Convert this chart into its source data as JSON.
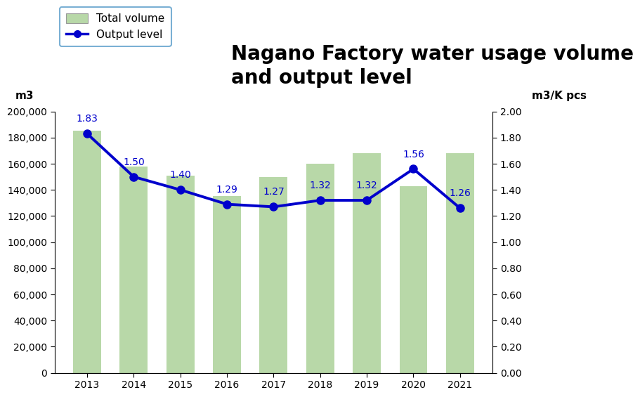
{
  "years": [
    "2013",
    "2014",
    "2015",
    "2016",
    "2017",
    "2018",
    "2019",
    "2020",
    "2021"
  ],
  "bar_values": [
    185000,
    158000,
    151000,
    135000,
    150000,
    160000,
    168000,
    143000,
    168000
  ],
  "line_values": [
    1.83,
    1.5,
    1.4,
    1.29,
    1.27,
    1.32,
    1.32,
    1.56,
    1.26
  ],
  "bar_color": "#b8d8a8",
  "line_color": "#0000cc",
  "marker_color": "#0000cc",
  "title_line1": "Nagano Factory water usage volume",
  "title_line2": "and output level",
  "ylabel_left": "m3",
  "ylabel_right": "m3/K pcs",
  "ylim_left": [
    0,
    200000
  ],
  "ylim_right": [
    0.0,
    2.0
  ],
  "yticks_left": [
    0,
    20000,
    40000,
    60000,
    80000,
    100000,
    120000,
    140000,
    160000,
    180000,
    200000
  ],
  "yticks_right": [
    0.0,
    0.2,
    0.4,
    0.6,
    0.8,
    1.0,
    1.2,
    1.4,
    1.6,
    1.8,
    2.0
  ],
  "legend_total_volume": "Total volume",
  "legend_output_level": "Output level",
  "title_fontsize": 20,
  "axis_label_fontsize": 11,
  "tick_fontsize": 10,
  "data_label_fontsize": 10,
  "legend_fontsize": 11,
  "background_color": "#ffffff",
  "legend_edgecolor": "#7ab0d4",
  "bar_edgecolor": "none"
}
